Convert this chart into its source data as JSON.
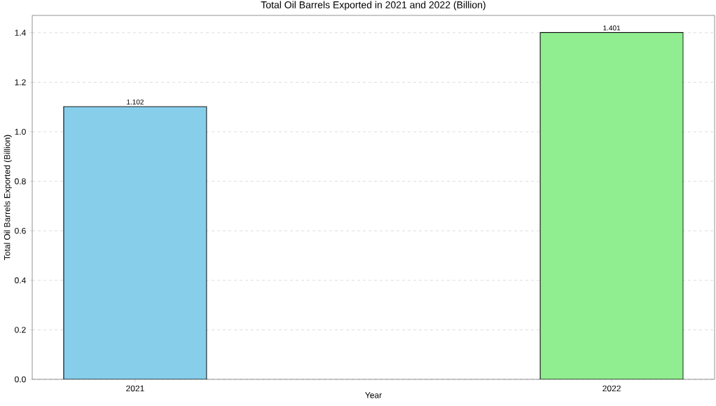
{
  "chart_data": {
    "type": "bar",
    "title": "Total Oil Barrels Exported in 2021 and 2022 (Billion)",
    "xlabel": "Year",
    "ylabel": "Total Oil Barrels Exported (Billion)",
    "categories": [
      "2021",
      "2022"
    ],
    "values": [
      1.102,
      1.401
    ],
    "colors": [
      "#87ceeb",
      "#90ee90"
    ],
    "ylim": [
      0,
      1.47
    ],
    "yticks": [
      {
        "value": 0,
        "label": "0.0"
      },
      0.2,
      0.4,
      0.6,
      0.8,
      {
        "value": 1,
        "label": "1.0"
      },
      1.2,
      1.4
    ],
    "grid": "y",
    "data_labels": true
  }
}
